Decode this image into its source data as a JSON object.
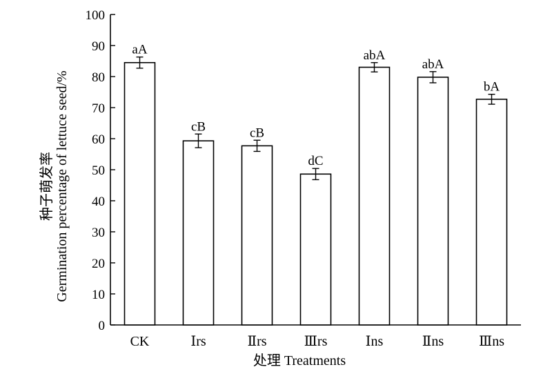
{
  "chart_data": {
    "type": "bar",
    "xlabel": "处理 Treatments",
    "ylabel": "种子萌发率 Germination percentage of lettuce seed/%",
    "ylabel_zh": "种子萌发率",
    "ylabel_en": "Germination percentage of lettuce seed/%",
    "ylim": [
      0,
      100
    ],
    "yticks": [
      0,
      10,
      20,
      30,
      40,
      50,
      60,
      70,
      80,
      90,
      100
    ],
    "categories": [
      "CK",
      "Ⅰrs",
      "Ⅱrs",
      "Ⅲrs",
      "Ⅰns",
      "Ⅱns",
      "Ⅲns"
    ],
    "values": [
      84.5,
      59.3,
      57.7,
      48.6,
      83.0,
      79.8,
      72.7
    ],
    "errors": [
      1.8,
      2.2,
      1.8,
      1.8,
      1.5,
      1.8,
      1.6
    ],
    "significance_labels": [
      "aA",
      "cB",
      "cB",
      "dC",
      "abA",
      "abA",
      "bA"
    ],
    "grid": false,
    "legend": "none"
  }
}
